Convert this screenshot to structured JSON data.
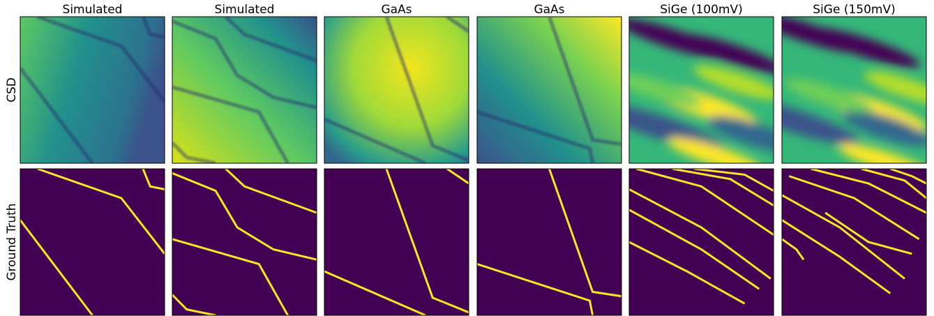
{
  "columns": [
    "Simulated",
    "Simulated",
    "GaAs",
    "GaAs",
    "SiGe (100mV)",
    "SiGe (150mV)"
  ],
  "rows": [
    "CSD",
    "Ground Truth"
  ]
}
